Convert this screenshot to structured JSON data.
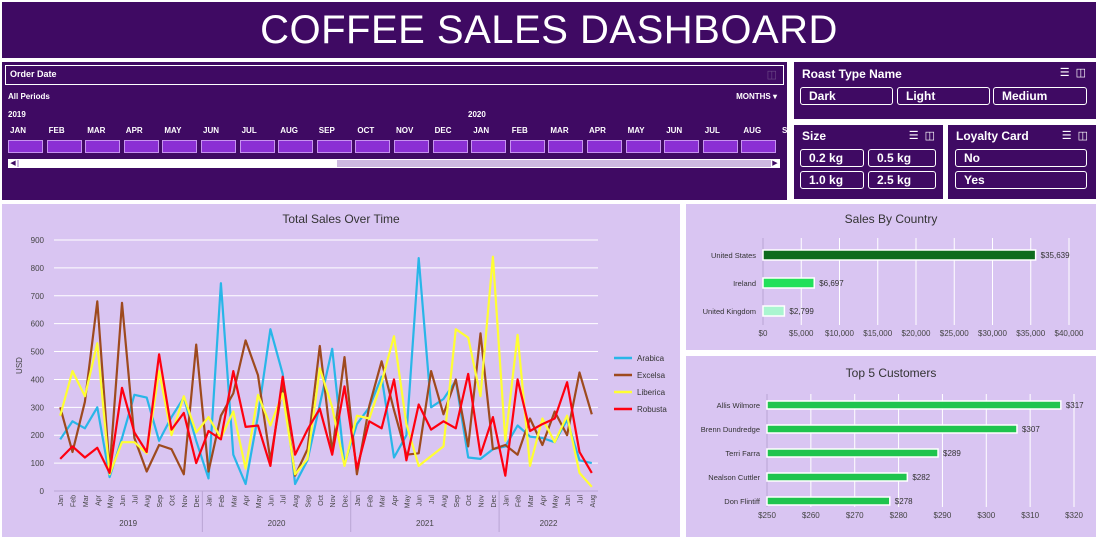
{
  "header": {
    "title": "COFFEE SALES DASHBOARD"
  },
  "timeline": {
    "title": "Order Date",
    "periods_label": "All Periods",
    "level_label": "MONTHS",
    "years": [
      "2019",
      "2020"
    ],
    "months": [
      "JAN",
      "FEB",
      "MAR",
      "APR",
      "MAY",
      "JUN",
      "JUL",
      "AUG",
      "SEP",
      "OCT",
      "NOV",
      "DEC",
      "JAN",
      "FEB",
      "MAR",
      "APR",
      "MAY",
      "JUN",
      "JUL",
      "AUG",
      "S"
    ]
  },
  "slicers": {
    "roast": {
      "title": "Roast Type Name",
      "items": [
        "Dark",
        "Light",
        "Medium"
      ]
    },
    "size": {
      "title": "Size",
      "items": [
        "0.2 kg",
        "0.5 kg",
        "1.0 kg",
        "2.5 kg"
      ]
    },
    "loyalty": {
      "title": "Loyalty Card",
      "items": [
        "No",
        "Yes"
      ]
    }
  },
  "chart_data": [
    {
      "type": "line",
      "title": "Total Sales Over Time",
      "ylabel": "USD",
      "ylim": [
        0,
        900
      ],
      "yticks": [
        0,
        100,
        200,
        300,
        400,
        500,
        600,
        700,
        800,
        900
      ],
      "grid": true,
      "legend": "right",
      "month_labels": [
        "Jan",
        "Feb",
        "Mar",
        "Apr",
        "May",
        "Jun",
        "Jul",
        "Aug",
        "Sep",
        "Oct",
        "Nov",
        "Dec",
        "Jan",
        "Feb",
        "Mar",
        "Apr",
        "May",
        "Jun",
        "Jul",
        "Aug",
        "Sep",
        "Oct",
        "Nov",
        "Dec",
        "Jan",
        "Feb",
        "Mar",
        "Apr",
        "May",
        "Jun",
        "Jul",
        "Aug",
        "Sep",
        "Oct",
        "Nov",
        "Dec",
        "Jan",
        "Feb",
        "Mar",
        "Apr",
        "May",
        "Jun",
        "Jul",
        "Aug"
      ],
      "year_groups": [
        {
          "label": "2019",
          "count": 12
        },
        {
          "label": "2020",
          "count": 12
        },
        {
          "label": "2021",
          "count": 12
        },
        {
          "label": "2022",
          "count": 8
        }
      ],
      "series": [
        {
          "name": "Arabica",
          "color": "#29b6e8",
          "values": [
            185,
            250,
            225,
            300,
            50,
            190,
            345,
            335,
            180,
            265,
            335,
            180,
            45,
            745,
            130,
            25,
            270,
            580,
            420,
            25,
            110,
            310,
            510,
            95,
            240,
            300,
            410,
            120,
            200,
            835,
            300,
            330,
            395,
            120,
            115,
            150,
            160,
            235,
            195,
            190,
            175,
            255,
            110,
            100
          ]
        },
        {
          "name": "Excelsa",
          "color": "#9e4a1e",
          "values": [
            300,
            140,
            320,
            680,
            75,
            675,
            190,
            70,
            165,
            150,
            60,
            525,
            70,
            270,
            350,
            540,
            415,
            110,
            380,
            55,
            150,
            520,
            140,
            480,
            60,
            305,
            465,
            290,
            130,
            135,
            430,
            275,
            400,
            160,
            565,
            150,
            165,
            130,
            260,
            165,
            285,
            200,
            425,
            275
          ]
        },
        {
          "name": "Liberica",
          "color": "#ffff33",
          "values": [
            270,
            430,
            340,
            530,
            60,
            175,
            175,
            135,
            430,
            200,
            340,
            210,
            265,
            190,
            285,
            80,
            345,
            235,
            350,
            60,
            115,
            440,
            300,
            90,
            270,
            260,
            390,
            555,
            240,
            90,
            125,
            160,
            580,
            550,
            340,
            840,
            180,
            560,
            90,
            260,
            175,
            270,
            65,
            15
          ]
        },
        {
          "name": "Robusta",
          "color": "#ff0010",
          "values": [
            115,
            160,
            120,
            155,
            65,
            370,
            210,
            140,
            490,
            220,
            280,
            100,
            215,
            185,
            430,
            230,
            235,
            90,
            410,
            130,
            220,
            295,
            130,
            375,
            80,
            250,
            225,
            400,
            110,
            310,
            220,
            250,
            225,
            420,
            130,
            265,
            55,
            400,
            215,
            240,
            260,
            390,
            140,
            65
          ]
        }
      ]
    },
    {
      "type": "bar",
      "orientation": "horizontal",
      "title": "Sales By Country",
      "categories": [
        "United States",
        "Ireland",
        "United Kingdom"
      ],
      "values": [
        35639,
        6697,
        2799
      ],
      "value_labels": [
        "$35,639",
        "$6,697",
        "$2,799"
      ],
      "colors": [
        "#0e6b1e",
        "#22e05a",
        "#aaf5d0"
      ],
      "xlim": [
        0,
        40000
      ],
      "xticks": [
        "$0",
        "$5,000",
        "$10,000",
        "$15,000",
        "$20,000",
        "$25,000",
        "$30,000",
        "$35,000",
        "$40,000"
      ],
      "grid": true
    },
    {
      "type": "bar",
      "orientation": "horizontal",
      "title": "Top 5 Customers",
      "categories": [
        "Allis Wilmore",
        "Brenn Dundredge",
        "Terri Farra",
        "Nealson Cuttler",
        "Don Flintiff"
      ],
      "values": [
        317,
        307,
        289,
        282,
        278
      ],
      "value_labels": [
        "$317",
        "$307",
        "$289",
        "$282",
        "$278"
      ],
      "color": "#1fc44e",
      "xlim": [
        250,
        320
      ],
      "xticks": [
        "$250",
        "$260",
        "$270",
        "$280",
        "$290",
        "$300",
        "$310",
        "$320"
      ],
      "grid": true
    }
  ]
}
